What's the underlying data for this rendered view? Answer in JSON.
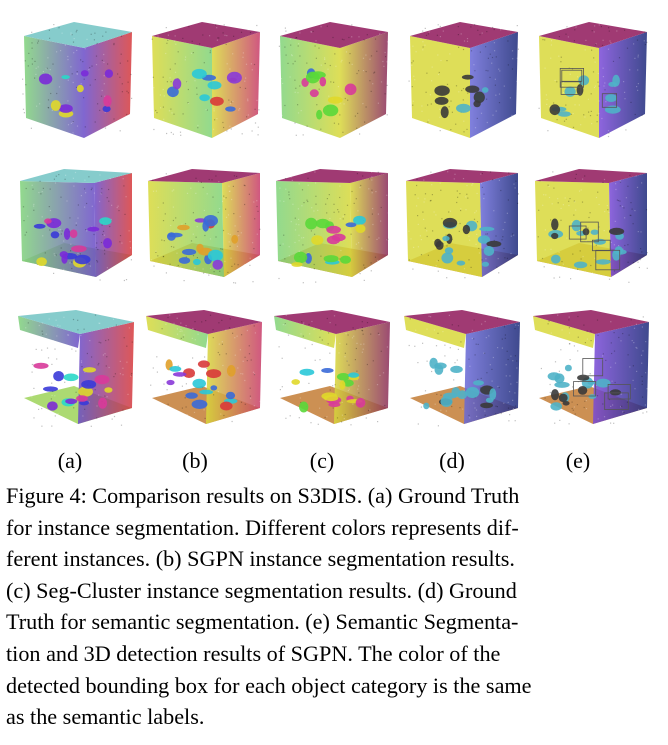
{
  "panel_labels": [
    "(a)",
    "(b)",
    "(c)",
    "(d)",
    "(e)"
  ],
  "caption": {
    "lines": [
      "Figure 4: Comparison results on S3DIS. (a) Ground Truth",
      "for instance segmentation. Different colors represents dif-",
      "ferent instances. (b) SGPN instance segmentation results.",
      "(c) Seg-Cluster instance segmentation results. (d) Ground",
      "Truth for semantic segmentation. (e) Semantic Segmenta-",
      "tion and 3D detection results of SGPN. The color of the",
      "detected bounding box for each object category is the same",
      "as the semantic labels."
    ]
  },
  "palette": {
    "ceiling": "#9b2f6b",
    "floor": "#c98a4a",
    "wall_yellow": "#d8d83a",
    "chair": "#4fb3c8",
    "table": "#3a3a3a",
    "wall_green": "#7fd37a",
    "wall_purple": "#6a4bc8",
    "wall_red": "#d83a3a",
    "wall_blue": "#3b6fd8",
    "navy": "#1d2a7a"
  }
}
